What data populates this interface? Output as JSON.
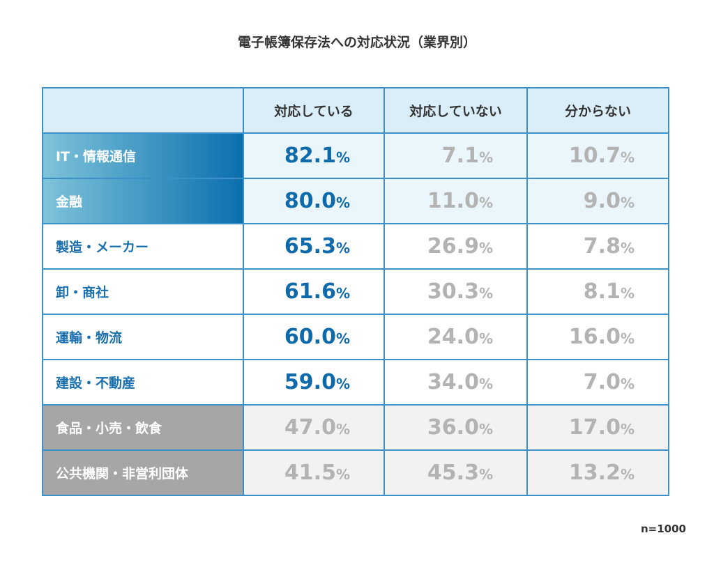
{
  "title": "電子帳簿保存法への対応状況（業界別）",
  "table": {
    "header": [
      "",
      "対応している",
      "対応していない",
      "分からない"
    ],
    "rows": [
      [
        "IT・情報通信",
        "82.1%",
        "7.1%",
        "10.7%"
      ],
      [
        "金融",
        "80.0%",
        "11.0%",
        "9.0%"
      ],
      [
        "製造・メーカー",
        "65.3%",
        "26.9%",
        "7.8%"
      ],
      [
        "卸・商社",
        "61.6%",
        "30.3%",
        "8.1%"
      ],
      [
        "運輸・物流",
        "60.0%",
        "24.0%",
        "16.0%"
      ],
      [
        "建設・不動産",
        "59.0%",
        "34.0%",
        "7.0%"
      ],
      [
        "食品・小売・飲食",
        "47.0%",
        "36.0%",
        "17.0%"
      ],
      [
        "公共機関・非営利団体",
        "41.5%",
        "45.3%",
        "13.2%"
      ]
    ]
  },
  "note": "n=1000"
}
